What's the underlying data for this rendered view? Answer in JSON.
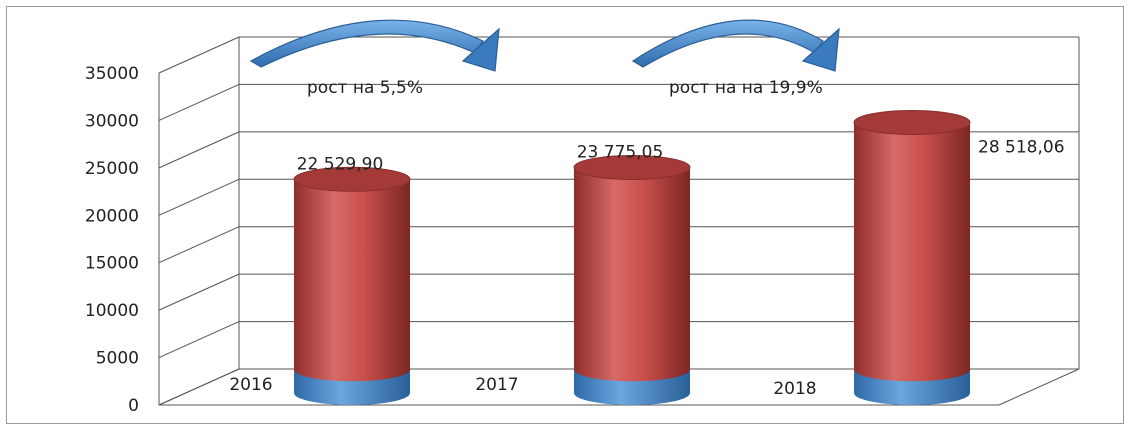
{
  "chart_data": {
    "type": "bar",
    "categories": [
      "2016",
      "2017",
      "2018"
    ],
    "series": [
      {
        "values": [
          2500,
          2500,
          2500
        ],
        "color": "#4f8fd0"
      },
      {
        "values": [
          22529.9,
          23775.05,
          28518.06
        ],
        "color": "#c0504d"
      }
    ],
    "data_labels": [
      "22 529,90",
      "23 775,05",
      "28 518,06"
    ],
    "yticks": [
      "0",
      "5000",
      "10000",
      "15000",
      "20000",
      "25000",
      "30000",
      "35000"
    ],
    "ylim": [
      0,
      35000
    ],
    "annotations": [
      {
        "text": "рост на 5,5%",
        "from": "2016",
        "to": "2017"
      },
      {
        "text": "рост на на 19,9%",
        "from": "2017",
        "to": "2018"
      }
    ],
    "grid": true,
    "colors": {
      "arrow": "#4f8fd0",
      "grid": "#444444"
    }
  }
}
